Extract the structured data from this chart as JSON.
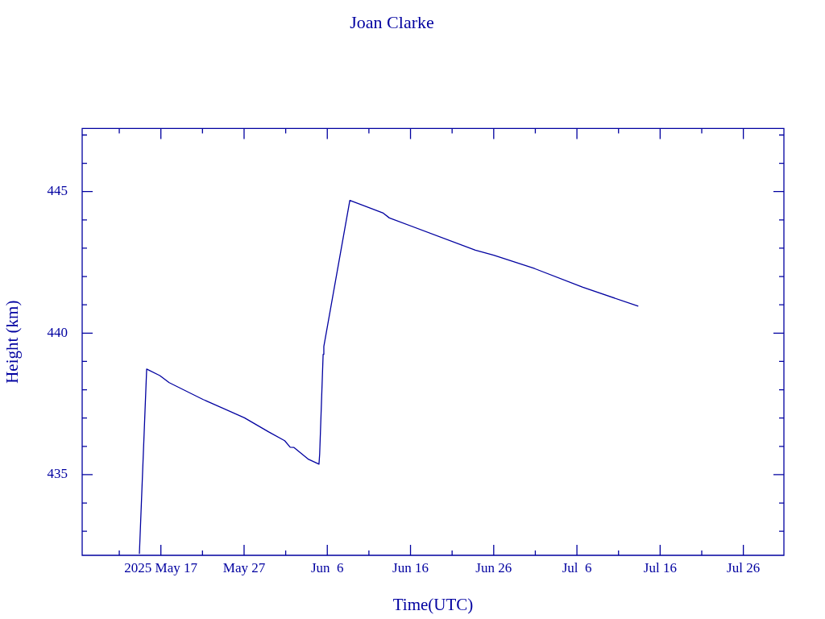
{
  "chart_data": {
    "type": "line",
    "title": "Joan Clarke",
    "xlabel": "Time(UTC)",
    "ylabel": "Height (km)",
    "x": [
      "2025-05-14T10:00",
      "2025-05-15T07:00",
      "2025-05-16T21:00",
      "2025-05-18T00:00",
      "2025-05-22T01:00",
      "2025-05-27T01:00",
      "2025-05-29T23:00",
      "2025-05-31T21:00",
      "2025-06-01T13:00",
      "2025-06-02T00:00",
      "2025-06-03T18:00",
      "2025-06-05T00:00",
      "2025-06-05T02:00",
      "2025-06-05T12:00",
      "2025-06-05T14:00",
      "2025-06-08T17:00",
      "2025-06-12T16:00",
      "2025-06-13T11:00",
      "2025-06-23T19:00",
      "2025-06-26T00:00",
      "2025-06-30T22:00",
      "2025-07-06T17:00",
      "2025-07-13T09:00"
    ],
    "series": [
      {
        "color": "#0000a0",
        "values": [
          432.2,
          438.73,
          438.5,
          438.25,
          437.66,
          437.01,
          436.51,
          436.2,
          435.97,
          435.96,
          435.54,
          435.37,
          435.73,
          439.25,
          439.53,
          444.69,
          444.25,
          444.07,
          442.93,
          442.75,
          442.28,
          441.62,
          440.95
        ]
      }
    ],
    "xlim": [
      "2025-05-07T13:00",
      "2025-07-30T21:00"
    ],
    "xticks": [
      {
        "value": "2025-05-12",
        "label": null
      },
      {
        "value": "2025-05-17",
        "label": "2025 May 17"
      },
      {
        "value": "2025-05-22",
        "label": null
      },
      {
        "value": "2025-05-27",
        "label": "May 27"
      },
      {
        "value": "2025-06-01",
        "label": null
      },
      {
        "value": "2025-06-06",
        "label": "Jun  6"
      },
      {
        "value": "2025-06-11",
        "label": null
      },
      {
        "value": "2025-06-16",
        "label": "Jun 16"
      },
      {
        "value": "2025-06-21",
        "label": null
      },
      {
        "value": "2025-06-26",
        "label": "Jun 26"
      },
      {
        "value": "2025-07-01",
        "label": null
      },
      {
        "value": "2025-07-06",
        "label": "Jul  6"
      },
      {
        "value": "2025-07-11",
        "label": null
      },
      {
        "value": "2025-07-16",
        "label": "Jul 16"
      },
      {
        "value": "2025-07-21",
        "label": null
      },
      {
        "value": "2025-07-26",
        "label": "Jul 26"
      }
    ],
    "ylim": [
      432.15,
      447.23
    ],
    "yticks": [
      {
        "value": 433,
        "label": null
      },
      {
        "value": 434,
        "label": null
      },
      435,
      {
        "value": 436,
        "label": null
      },
      {
        "value": 437,
        "label": null
      },
      {
        "value": 438,
        "label": null
      },
      {
        "value": 439,
        "label": null
      },
      440,
      {
        "value": 441,
        "label": null
      },
      {
        "value": 442,
        "label": null
      },
      {
        "value": 443,
        "label": null
      },
      {
        "value": 444,
        "label": null
      },
      445,
      {
        "value": 446,
        "label": null
      },
      {
        "value": 447,
        "label": null
      }
    ],
    "legend": false,
    "marker": "none"
  }
}
